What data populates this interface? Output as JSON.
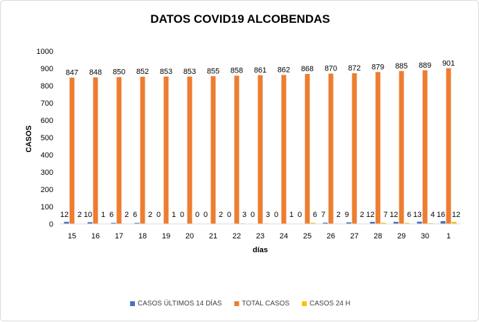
{
  "chart_data": {
    "type": "bar",
    "title": "DATOS COVID19 ALCOBENDAS",
    "xlabel": "días",
    "ylabel": "CASOS",
    "ylim": [
      0,
      1000
    ],
    "yticks": [
      0,
      100,
      200,
      300,
      400,
      500,
      600,
      700,
      800,
      900,
      1000
    ],
    "grid": false,
    "legend_position": "bottom",
    "categories": [
      "15",
      "16",
      "17",
      "18",
      "19",
      "20",
      "21",
      "22",
      "23",
      "24",
      "25",
      "26",
      "27",
      "28",
      "29",
      "30",
      "1"
    ],
    "series": [
      {
        "name": "CASOS ÚLTIMOS 14 DÍAS",
        "color": "#4472c4",
        "values": [
          12,
          10,
          6,
          6,
          0,
          0,
          0,
          0,
          0,
          0,
          0,
          7,
          9,
          12,
          12,
          13,
          16
        ]
      },
      {
        "name": "TOTAL CASOS",
        "color": "#ed7d31",
        "values": [
          847,
          848,
          850,
          852,
          853,
          853,
          855,
          858,
          861,
          862,
          868,
          870,
          872,
          879,
          885,
          889,
          901
        ]
      },
      {
        "name": "CASOS 24 H",
        "color": "#ffc000",
        "values": [
          2,
          1,
          2,
          2,
          1,
          0,
          2,
          3,
          3,
          1,
          6,
          2,
          2,
          7,
          6,
          4,
          12
        ]
      }
    ]
  }
}
